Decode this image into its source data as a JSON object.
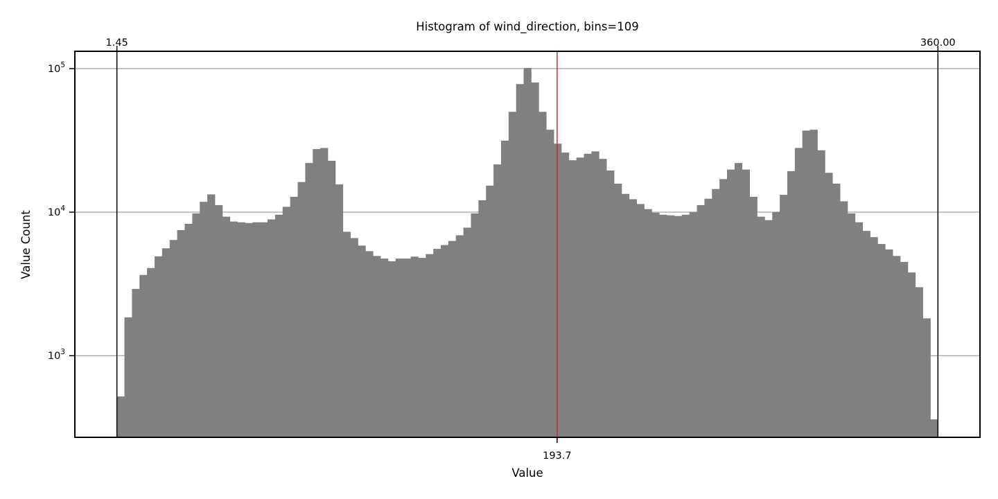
{
  "chart_data": {
    "type": "bar",
    "title": "Histogram of wind_direction, bins=109",
    "xlabel": "Value",
    "ylabel": "Value Count",
    "yscale": "log",
    "ylim": [
      270,
      132000
    ],
    "xlim": [
      -16.92,
      378.37
    ],
    "grid": "horizontal",
    "bar_color": "#808080",
    "marker_color": "#d62728",
    "data_range": {
      "min": 1.45,
      "max": 360.0,
      "min_label": "1.45",
      "max_label": "360.00"
    },
    "marker": {
      "value": 193.7,
      "label": "193.7"
    },
    "y_ticks": [
      {
        "value": 1000,
        "base": "10",
        "exp": "3"
      },
      {
        "value": 10000,
        "base": "10",
        "exp": "4"
      },
      {
        "value": 100000,
        "base": "10",
        "exp": "5"
      }
    ],
    "bins": 109,
    "values": [
      520,
      1850,
      2920,
      3650,
      4080,
      4920,
      5600,
      6400,
      7500,
      8300,
      9800,
      11800,
      13300,
      11200,
      9300,
      8600,
      8500,
      8400,
      8500,
      8500,
      8900,
      9600,
      10900,
      12800,
      16200,
      22000,
      27500,
      28000,
      22800,
      15600,
      7300,
      6600,
      5850,
      5350,
      4950,
      4750,
      4550,
      4750,
      4750,
      4900,
      4800,
      5100,
      5550,
      5900,
      6300,
      6900,
      7800,
      9800,
      12100,
      15300,
      21500,
      31500,
      50000,
      78000,
      101000,
      80000,
      50000,
      37500,
      30000,
      26000,
      23000,
      24000,
      25500,
      26500,
      23500,
      19500,
      15800,
      13400,
      12300,
      11400,
      10500,
      9900,
      9600,
      9500,
      9400,
      9600,
      10000,
      11200,
      12400,
      14500,
      17000,
      19800,
      22000,
      19800,
      12800,
      9300,
      8800,
      10000,
      13200,
      19300,
      28000,
      37000,
      37500,
      27000,
      18800,
      15800,
      11900,
      9800,
      8500,
      7400,
      6700,
      6000,
      5500,
      4950,
      4500,
      3800,
      3000,
      1820,
      360
    ]
  }
}
